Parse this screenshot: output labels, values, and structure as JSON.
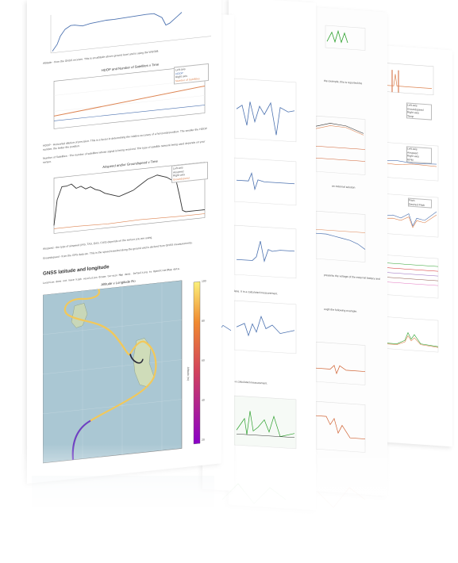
{
  "doc": {
    "paragraphs": {
      "altitude_note": "Altitude - from the GNSS receiver. This is an altitude above ground level and is using the WGS84.",
      "hdop_note": "HDOP - Horizontal dilution of precision. This is a factor in determining the relative accuracy of a horizontal position. The smaller the HDOP number, the better the position.",
      "satellites_note": "Number of Satellites - The number of satellites whose signal is being received. The type of satellite network being used depends on your sensor.",
      "airspeed_note": "Airspeed - the type of airspeed (IAS, TAS, EAS, CAS) depends on the sensor you are using.",
      "groundspeed_note": "Groundspeed - from the GPS data etc. This is the speed traveled along the ground and is derived from GNSS measurements."
    },
    "section_title": "GNSS latitude and longitude",
    "code_line": "Location does not have high resolution Ocean terrain Map data. Defaulting to OpenStreetMap data.",
    "charts": {
      "hdop": {
        "title": "HDOP and Number of Satellites v Time",
        "legend": [
          "Left axis",
          "HDOP",
          "Right axis",
          "Number of Satellites"
        ],
        "colors": [
          "#4c72b0",
          "#dd8452"
        ]
      },
      "speed": {
        "title": "Airspeed and/or Groundspeed v Time",
        "legend": [
          "Left axis",
          "Airspeed",
          "Right axis",
          "Groundspeed"
        ],
        "colors": [
          "#333333",
          "#dd8452"
        ]
      },
      "map": {
        "title": "Altitude v Longitude Ro",
        "colorbar_label": "Altitude (m)",
        "colorbar_ticks": [
          "20",
          "40",
          "60",
          "80",
          "100"
        ]
      }
    },
    "page3_notes": [
      "plane. It is a calculated measurement.",
      "is a calculated measurement."
    ],
    "page4_notes": [
      "the example, this is reported the",
      "an external solution",
      "presents the voltage of the external battery and",
      "ough the following example."
    ],
    "page5_legend_a": [
      "Left axis",
      "Airspeed",
      "Right axis",
      "RPM"
    ],
    "page5_legend_b": [
      "Pitch",
      "Desired Pitch"
    ],
    "page5_legend_c": [
      "Left axis",
      "Groundspeed",
      "Right axis",
      "Temp"
    ]
  }
}
